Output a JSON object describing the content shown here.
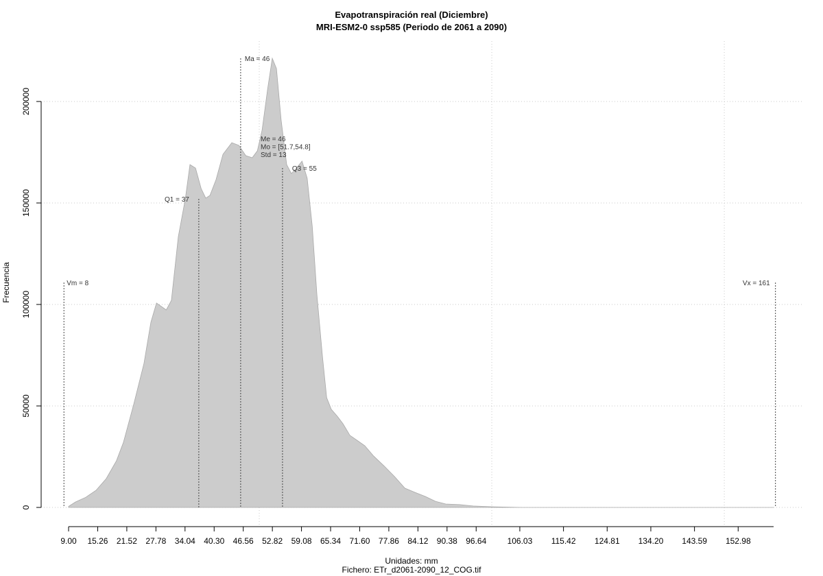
{
  "chart_data": {
    "type": "area",
    "title": "Evapotranspiración real (Diciembre)",
    "subtitle": "MRI-ESM2-0 ssp585 (Periodo de 2061 a 2090)",
    "xlabel": "Unidades: mm",
    "caption": "Fichero: ETr_d2061-2090_12_COG.tif",
    "ylabel": "Frecuencia",
    "color": "#cccccc",
    "x": [
      9,
      10.5,
      12.7,
      14.9,
      17.1,
      19.3,
      20.8,
      23.0,
      25.2,
      26.7,
      27.9,
      30.0,
      31.1,
      32.6,
      34.1,
      35.1,
      36.3,
      37.5,
      38.5,
      39.4,
      40.7,
      42.2,
      44.1,
      45.6,
      47.1,
      48.5,
      49.6,
      50.6,
      51.8,
      52.8,
      53.7,
      54.7,
      55.9,
      56.9,
      58.0,
      59.2,
      60.3,
      61.4,
      62.4,
      63.6,
      64.5,
      65.5,
      66.8,
      68.0,
      69.5,
      71.0,
      72.7,
      74.6,
      76.9,
      79.1,
      81.3,
      83.5,
      85.7,
      87.9,
      90.1,
      93.1,
      96.0,
      100.5,
      106.4,
      160.6
    ],
    "values": [
      500,
      2700,
      5000,
      8400,
      14200,
      23000,
      32100,
      50700,
      70900,
      91200,
      100700,
      97300,
      102000,
      133400,
      152000,
      168900,
      167200,
      157100,
      152400,
      153700,
      161500,
      174000,
      179700,
      178400,
      173300,
      172300,
      175700,
      185800,
      206100,
      221300,
      216200,
      190900,
      168900,
      164500,
      167200,
      170600,
      162200,
      138500,
      104700,
      74300,
      54100,
      48300,
      44900,
      41200,
      35500,
      33100,
      30400,
      25300,
      20300,
      15200,
      9500,
      7400,
      5400,
      3000,
      1700,
      1400,
      700,
      300,
      0,
      0
    ],
    "xlim": [
      3.1,
      166.8
    ],
    "ylim": [
      -9460,
      229730
    ],
    "yticks": [
      0,
      50000,
      100000,
      150000,
      200000
    ],
    "xticks": [
      {
        "value": 9,
        "label": "9.00"
      },
      15.26,
      21.52,
      27.78,
      34.04,
      {
        "value": 40.3,
        "label": "40.30"
      },
      46.56,
      52.82,
      59.08,
      65.34,
      {
        "value": 71.6,
        "label": "71.60"
      },
      77.86,
      84.12,
      90.38,
      96.64,
      106.03,
      115.42,
      124.81,
      {
        "value": 134.2,
        "label": "134.20"
      },
      143.59,
      152.98
    ],
    "x_grid": [
      50,
      100,
      150
    ],
    "grid": true,
    "annotations": [
      {
        "label": "Vm = 8",
        "x": 8
      },
      {
        "label": "Q1 = 37",
        "x": 37
      },
      {
        "label": "Ma = 46",
        "x": 46
      },
      {
        "label": "Q3 = 55",
        "x": 55
      },
      {
        "label": "Vx = 161",
        "x": 161
      }
    ],
    "stats_text": [
      "Me = 46",
      "Mo = [51.7,54.8]",
      "Std = 13"
    ]
  }
}
